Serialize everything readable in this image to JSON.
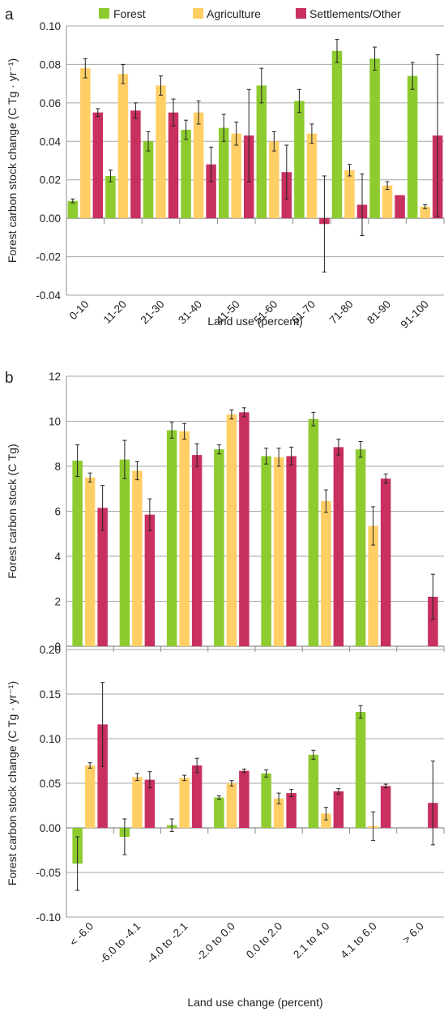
{
  "colors": {
    "Forest": "#8dcb2e",
    "Agriculture": "#ffcf66",
    "Settlements/Other": "#c8305f",
    "grid": "#a6a6a6",
    "axis": "#8c8c8c",
    "errorbar": "#222222"
  },
  "legend": [
    "Forest",
    "Agriculture",
    "Settlements/Other"
  ],
  "panel_labels": {
    "a": "a",
    "b": "b"
  },
  "chart_data": [
    {
      "type": "bar",
      "panel": "a",
      "xlabel": "Land use (percent)",
      "ylabel": "Forest carbon stock change (C Tg · yr⁻¹)",
      "ylim": [
        -0.04,
        0.1
      ],
      "yticks": [
        "-0.04",
        "-0.02",
        "0.00",
        "0.02",
        "0.04",
        "0.06",
        "0.08",
        "0.10"
      ],
      "grid": true,
      "legend_position": "top",
      "categories": [
        "0-10",
        "11-20",
        "21-30",
        "31-40",
        "41-50",
        "51-60",
        "61-70",
        "71-80",
        "81-90",
        "91-100"
      ],
      "series": [
        {
          "name": "Forest",
          "values": [
            0.009,
            0.022,
            0.04,
            0.046,
            0.047,
            0.069,
            0.061,
            0.087,
            0.083,
            0.074
          ],
          "errors": [
            0.001,
            0.003,
            0.005,
            0.005,
            0.007,
            0.009,
            0.006,
            0.006,
            0.006,
            0.007
          ]
        },
        {
          "name": "Agriculture",
          "values": [
            0.078,
            0.075,
            0.069,
            0.055,
            0.044,
            0.04,
            0.044,
            0.025,
            0.017,
            0.006
          ],
          "errors": [
            0.005,
            0.005,
            0.005,
            0.006,
            0.006,
            0.005,
            0.005,
            0.003,
            0.002,
            0.001
          ]
        },
        {
          "name": "Settlements/Other",
          "values": [
            0.055,
            0.056,
            0.055,
            0.028,
            0.043,
            0.024,
            -0.003,
            0.007,
            0.012,
            0.043
          ],
          "errors": [
            0.002,
            0.004,
            0.007,
            0.009,
            0.024,
            0.014,
            0.025,
            0.016,
            0.0,
            0.042
          ]
        }
      ]
    },
    {
      "type": "bar",
      "panel": "b-top",
      "xlabel": "",
      "ylabel": "Forest carbon stock (C Tg)",
      "ylim": [
        0,
        12
      ],
      "yticks": [
        "0",
        "2",
        "4",
        "6",
        "8",
        "10",
        "12"
      ],
      "grid": true,
      "categories": [
        "< -6.0",
        "-6.0 to -4.1",
        "-4.0 to -2.1",
        "-2.0 to 0.0",
        "0.0 to 2.0",
        "2.1 to 4.0",
        "4.1 to 6.0",
        "> 6.0"
      ],
      "series": [
        {
          "name": "Forest",
          "values": [
            8.25,
            8.3,
            9.6,
            8.75,
            8.45,
            10.1,
            8.75,
            null
          ],
          "errors": [
            0.7,
            0.85,
            0.35,
            0.2,
            0.35,
            0.3,
            0.35,
            null
          ]
        },
        {
          "name": "Agriculture",
          "values": [
            7.5,
            7.8,
            9.55,
            10.3,
            8.4,
            6.45,
            5.35,
            null
          ],
          "errors": [
            0.2,
            0.4,
            0.35,
            0.2,
            0.4,
            0.5,
            0.85,
            null
          ]
        },
        {
          "name": "Settlements/Other",
          "values": [
            6.15,
            5.85,
            8.5,
            10.4,
            8.45,
            8.85,
            7.45,
            2.2
          ],
          "errors": [
            1.0,
            0.7,
            0.5,
            0.2,
            0.4,
            0.35,
            0.2,
            1.0
          ]
        }
      ]
    },
    {
      "type": "bar",
      "panel": "b-bottom",
      "xlabel": "Land use change (percent)",
      "ylabel": "Forest carbon stock change (C Tg · yr⁻¹)",
      "ylim": [
        -0.1,
        0.2
      ],
      "yticks": [
        "-0.10",
        "-0.05",
        "0.00",
        "0.05",
        "0.10",
        "0.15",
        "0.20"
      ],
      "grid": true,
      "categories": [
        "< -6.0",
        "-6.0 to -4.1",
        "-4.0 to -2.1",
        "-2.0 to 0.0",
        "0.0 to 2.0",
        "2.1 to 4.0",
        "4.1 to 6.0",
        "> 6.0"
      ],
      "series": [
        {
          "name": "Forest",
          "values": [
            -0.04,
            -0.01,
            0.003,
            0.034,
            0.061,
            0.082,
            0.13,
            null
          ],
          "errors": [
            0.03,
            0.02,
            0.007,
            0.002,
            0.004,
            0.005,
            0.007,
            null
          ]
        },
        {
          "name": "Agriculture",
          "values": [
            0.07,
            0.057,
            0.056,
            0.05,
            0.033,
            0.016,
            0.002,
            null
          ],
          "errors": [
            0.003,
            0.004,
            0.003,
            0.003,
            0.006,
            0.007,
            0.016,
            null
          ]
        },
        {
          "name": "Settlements/Other",
          "values": [
            0.116,
            0.054,
            0.07,
            0.064,
            0.039,
            0.041,
            0.047,
            0.028
          ],
          "errors": [
            0.047,
            0.009,
            0.008,
            0.002,
            0.004,
            0.003,
            0.002,
            0.047
          ]
        }
      ]
    }
  ]
}
